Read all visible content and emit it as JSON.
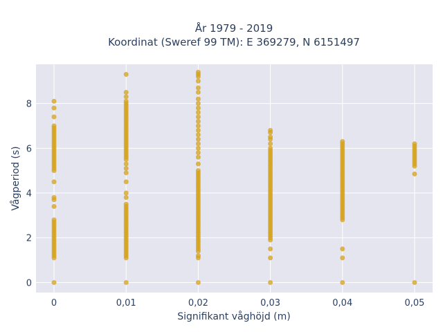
{
  "chart_data": {
    "type": "scatter",
    "title_line1": "År 1979 - 2019",
    "title_line2": "Koordinat (Sweref 99 TM): E 369279, N 6151497",
    "xlabel": "Signifikant våghöjd (m)",
    "ylabel": "Vågperiod (s)",
    "xlim": [
      -0.0025,
      0.0525
    ],
    "ylim": [
      -0.45,
      9.75
    ],
    "x_ticks": [
      {
        "value": 0,
        "label": "0"
      },
      {
        "value": 0.01,
        "label": "0,01"
      },
      {
        "value": 0.02,
        "label": "0,02"
      },
      {
        "value": 0.03,
        "label": "0,03"
      },
      {
        "value": 0.04,
        "label": "0,04"
      },
      {
        "value": 0.05,
        "label": "0,05"
      }
    ],
    "y_ticks": [
      {
        "value": 0,
        "label": "0"
      },
      {
        "value": 2,
        "label": "2"
      },
      {
        "value": 4,
        "label": "4"
      },
      {
        "value": 6,
        "label": "6"
      },
      {
        "value": 8,
        "label": "8"
      }
    ],
    "grid": true,
    "colors": {
      "marker": "#D4A017",
      "plot_bg": "#E5E5F0",
      "grid": "#ffffff"
    },
    "series": [
      {
        "points": [
          {
            "x": 0,
            "y": 0
          },
          {
            "x": 0,
            "y": 1.1
          },
          {
            "x": 0,
            "y": 1.2
          },
          {
            "x": 0,
            "y": 1.3
          },
          {
            "x": 0,
            "y": 1.4
          },
          {
            "x": 0,
            "y": 1.5
          },
          {
            "x": 0,
            "y": 1.6
          },
          {
            "x": 0,
            "y": 1.7
          },
          {
            "x": 0,
            "y": 1.8
          },
          {
            "x": 0,
            "y": 1.9
          },
          {
            "x": 0,
            "y": 2.0
          },
          {
            "x": 0,
            "y": 2.1
          },
          {
            "x": 0,
            "y": 2.2
          },
          {
            "x": 0,
            "y": 2.3
          },
          {
            "x": 0,
            "y": 2.4
          },
          {
            "x": 0,
            "y": 2.5
          },
          {
            "x": 0,
            "y": 2.6
          },
          {
            "x": 0,
            "y": 2.7
          },
          {
            "x": 0,
            "y": 2.8
          },
          {
            "x": 0,
            "y": 3.4
          },
          {
            "x": 0,
            "y": 3.7
          },
          {
            "x": 0,
            "y": 3.8
          },
          {
            "x": 0,
            "y": 4.5
          },
          {
            "x": 0,
            "y": 5.0
          },
          {
            "x": 0,
            "y": 5.1
          },
          {
            "x": 0,
            "y": 5.2
          },
          {
            "x": 0,
            "y": 5.3
          },
          {
            "x": 0,
            "y": 5.4
          },
          {
            "x": 0,
            "y": 5.5
          },
          {
            "x": 0,
            "y": 5.6
          },
          {
            "x": 0,
            "y": 5.7
          },
          {
            "x": 0,
            "y": 5.8
          },
          {
            "x": 0,
            "y": 5.9
          },
          {
            "x": 0,
            "y": 6.0
          },
          {
            "x": 0,
            "y": 6.1
          },
          {
            "x": 0,
            "y": 6.2
          },
          {
            "x": 0,
            "y": 6.3
          },
          {
            "x": 0,
            "y": 6.4
          },
          {
            "x": 0,
            "y": 6.5
          },
          {
            "x": 0,
            "y": 6.6
          },
          {
            "x": 0,
            "y": 6.7
          },
          {
            "x": 0,
            "y": 6.8
          },
          {
            "x": 0,
            "y": 6.9
          },
          {
            "x": 0,
            "y": 7.0
          },
          {
            "x": 0,
            "y": 7.4
          },
          {
            "x": 0,
            "y": 7.8
          },
          {
            "x": 0,
            "y": 8.1
          },
          {
            "x": 0.01,
            "y": 0
          },
          {
            "x": 0.01,
            "y": 1.1
          },
          {
            "x": 0.01,
            "y": 1.2
          },
          {
            "x": 0.01,
            "y": 1.3
          },
          {
            "x": 0.01,
            "y": 1.4
          },
          {
            "x": 0.01,
            "y": 1.5
          },
          {
            "x": 0.01,
            "y": 1.6
          },
          {
            "x": 0.01,
            "y": 1.7
          },
          {
            "x": 0.01,
            "y": 1.8
          },
          {
            "x": 0.01,
            "y": 1.9
          },
          {
            "x": 0.01,
            "y": 2.0
          },
          {
            "x": 0.01,
            "y": 2.1
          },
          {
            "x": 0.01,
            "y": 2.2
          },
          {
            "x": 0.01,
            "y": 2.3
          },
          {
            "x": 0.01,
            "y": 2.4
          },
          {
            "x": 0.01,
            "y": 2.5
          },
          {
            "x": 0.01,
            "y": 2.6
          },
          {
            "x": 0.01,
            "y": 2.7
          },
          {
            "x": 0.01,
            "y": 2.8
          },
          {
            "x": 0.01,
            "y": 2.9
          },
          {
            "x": 0.01,
            "y": 3.0
          },
          {
            "x": 0.01,
            "y": 3.1
          },
          {
            "x": 0.01,
            "y": 3.2
          },
          {
            "x": 0.01,
            "y": 3.3
          },
          {
            "x": 0.01,
            "y": 3.4
          },
          {
            "x": 0.01,
            "y": 3.5
          },
          {
            "x": 0.01,
            "y": 3.8
          },
          {
            "x": 0.01,
            "y": 4.0
          },
          {
            "x": 0.01,
            "y": 4.5
          },
          {
            "x": 0.01,
            "y": 4.9
          },
          {
            "x": 0.01,
            "y": 5.1
          },
          {
            "x": 0.01,
            "y": 5.3
          },
          {
            "x": 0.01,
            "y": 5.5
          },
          {
            "x": 0.01,
            "y": 5.6
          },
          {
            "x": 0.01,
            "y": 5.7
          },
          {
            "x": 0.01,
            "y": 5.8
          },
          {
            "x": 0.01,
            "y": 5.9
          },
          {
            "x": 0.01,
            "y": 6.0
          },
          {
            "x": 0.01,
            "y": 6.1
          },
          {
            "x": 0.01,
            "y": 6.2
          },
          {
            "x": 0.01,
            "y": 6.3
          },
          {
            "x": 0.01,
            "y": 6.4
          },
          {
            "x": 0.01,
            "y": 6.5
          },
          {
            "x": 0.01,
            "y": 6.6
          },
          {
            "x": 0.01,
            "y": 6.7
          },
          {
            "x": 0.01,
            "y": 6.8
          },
          {
            "x": 0.01,
            "y": 6.9
          },
          {
            "x": 0.01,
            "y": 7.0
          },
          {
            "x": 0.01,
            "y": 7.1
          },
          {
            "x": 0.01,
            "y": 7.2
          },
          {
            "x": 0.01,
            "y": 7.3
          },
          {
            "x": 0.01,
            "y": 7.4
          },
          {
            "x": 0.01,
            "y": 7.5
          },
          {
            "x": 0.01,
            "y": 7.6
          },
          {
            "x": 0.01,
            "y": 7.7
          },
          {
            "x": 0.01,
            "y": 7.8
          },
          {
            "x": 0.01,
            "y": 7.9
          },
          {
            "x": 0.01,
            "y": 8.0
          },
          {
            "x": 0.01,
            "y": 8.1
          },
          {
            "x": 0.01,
            "y": 8.3
          },
          {
            "x": 0.01,
            "y": 8.5
          },
          {
            "x": 0.01,
            "y": 9.3
          },
          {
            "x": 0.02,
            "y": 0
          },
          {
            "x": 0.02,
            "y": 1.1
          },
          {
            "x": 0.02,
            "y": 1.2
          },
          {
            "x": 0.02,
            "y": 1.4
          },
          {
            "x": 0.02,
            "y": 1.5
          },
          {
            "x": 0.02,
            "y": 1.6
          },
          {
            "x": 0.02,
            "y": 1.7
          },
          {
            "x": 0.02,
            "y": 1.8
          },
          {
            "x": 0.02,
            "y": 1.9
          },
          {
            "x": 0.02,
            "y": 2.0
          },
          {
            "x": 0.02,
            "y": 2.1
          },
          {
            "x": 0.02,
            "y": 2.2
          },
          {
            "x": 0.02,
            "y": 2.3
          },
          {
            "x": 0.02,
            "y": 2.4
          },
          {
            "x": 0.02,
            "y": 2.5
          },
          {
            "x": 0.02,
            "y": 2.6
          },
          {
            "x": 0.02,
            "y": 2.7
          },
          {
            "x": 0.02,
            "y": 2.8
          },
          {
            "x": 0.02,
            "y": 2.9
          },
          {
            "x": 0.02,
            "y": 3.0
          },
          {
            "x": 0.02,
            "y": 3.1
          },
          {
            "x": 0.02,
            "y": 3.2
          },
          {
            "x": 0.02,
            "y": 3.3
          },
          {
            "x": 0.02,
            "y": 3.4
          },
          {
            "x": 0.02,
            "y": 3.5
          },
          {
            "x": 0.02,
            "y": 3.6
          },
          {
            "x": 0.02,
            "y": 3.7
          },
          {
            "x": 0.02,
            "y": 3.8
          },
          {
            "x": 0.02,
            "y": 3.9
          },
          {
            "x": 0.02,
            "y": 4.0
          },
          {
            "x": 0.02,
            "y": 4.1
          },
          {
            "x": 0.02,
            "y": 4.2
          },
          {
            "x": 0.02,
            "y": 4.3
          },
          {
            "x": 0.02,
            "y": 4.4
          },
          {
            "x": 0.02,
            "y": 4.5
          },
          {
            "x": 0.02,
            "y": 4.6
          },
          {
            "x": 0.02,
            "y": 4.7
          },
          {
            "x": 0.02,
            "y": 4.8
          },
          {
            "x": 0.02,
            "y": 4.9
          },
          {
            "x": 0.02,
            "y": 5.0
          },
          {
            "x": 0.02,
            "y": 5.3
          },
          {
            "x": 0.02,
            "y": 5.6
          },
          {
            "x": 0.02,
            "y": 5.8
          },
          {
            "x": 0.02,
            "y": 6.0
          },
          {
            "x": 0.02,
            "y": 6.2
          },
          {
            "x": 0.02,
            "y": 6.4
          },
          {
            "x": 0.02,
            "y": 6.6
          },
          {
            "x": 0.02,
            "y": 6.8
          },
          {
            "x": 0.02,
            "y": 7.0
          },
          {
            "x": 0.02,
            "y": 7.2
          },
          {
            "x": 0.02,
            "y": 7.4
          },
          {
            "x": 0.02,
            "y": 7.6
          },
          {
            "x": 0.02,
            "y": 7.8
          },
          {
            "x": 0.02,
            "y": 8.0
          },
          {
            "x": 0.02,
            "y": 8.2
          },
          {
            "x": 0.02,
            "y": 8.5
          },
          {
            "x": 0.02,
            "y": 8.7
          },
          {
            "x": 0.02,
            "y": 9.0
          },
          {
            "x": 0.02,
            "y": 9.2
          },
          {
            "x": 0.02,
            "y": 9.3
          },
          {
            "x": 0.02,
            "y": 9.4
          },
          {
            "x": 0.03,
            "y": 0
          },
          {
            "x": 0.03,
            "y": 1.1
          },
          {
            "x": 0.03,
            "y": 1.5
          },
          {
            "x": 0.03,
            "y": 1.9
          },
          {
            "x": 0.03,
            "y": 2.0
          },
          {
            "x": 0.03,
            "y": 2.1
          },
          {
            "x": 0.03,
            "y": 2.2
          },
          {
            "x": 0.03,
            "y": 2.3
          },
          {
            "x": 0.03,
            "y": 2.4
          },
          {
            "x": 0.03,
            "y": 2.5
          },
          {
            "x": 0.03,
            "y": 2.6
          },
          {
            "x": 0.03,
            "y": 2.7
          },
          {
            "x": 0.03,
            "y": 2.8
          },
          {
            "x": 0.03,
            "y": 2.9
          },
          {
            "x": 0.03,
            "y": 3.0
          },
          {
            "x": 0.03,
            "y": 3.1
          },
          {
            "x": 0.03,
            "y": 3.2
          },
          {
            "x": 0.03,
            "y": 3.3
          },
          {
            "x": 0.03,
            "y": 3.4
          },
          {
            "x": 0.03,
            "y": 3.5
          },
          {
            "x": 0.03,
            "y": 3.6
          },
          {
            "x": 0.03,
            "y": 3.7
          },
          {
            "x": 0.03,
            "y": 3.8
          },
          {
            "x": 0.03,
            "y": 3.9
          },
          {
            "x": 0.03,
            "y": 4.0
          },
          {
            "x": 0.03,
            "y": 4.1
          },
          {
            "x": 0.03,
            "y": 4.2
          },
          {
            "x": 0.03,
            "y": 4.3
          },
          {
            "x": 0.03,
            "y": 4.4
          },
          {
            "x": 0.03,
            "y": 4.5
          },
          {
            "x": 0.03,
            "y": 4.6
          },
          {
            "x": 0.03,
            "y": 4.7
          },
          {
            "x": 0.03,
            "y": 4.8
          },
          {
            "x": 0.03,
            "y": 4.9
          },
          {
            "x": 0.03,
            "y": 5.0
          },
          {
            "x": 0.03,
            "y": 5.1
          },
          {
            "x": 0.03,
            "y": 5.2
          },
          {
            "x": 0.03,
            "y": 5.3
          },
          {
            "x": 0.03,
            "y": 5.4
          },
          {
            "x": 0.03,
            "y": 5.5
          },
          {
            "x": 0.03,
            "y": 5.6
          },
          {
            "x": 0.03,
            "y": 5.7
          },
          {
            "x": 0.03,
            "y": 5.8
          },
          {
            "x": 0.03,
            "y": 5.9
          },
          {
            "x": 0.03,
            "y": 6.0
          },
          {
            "x": 0.03,
            "y": 6.2
          },
          {
            "x": 0.03,
            "y": 6.4
          },
          {
            "x": 0.03,
            "y": 6.5
          },
          {
            "x": 0.03,
            "y": 6.7
          },
          {
            "x": 0.03,
            "y": 6.8
          },
          {
            "x": 0.04,
            "y": 0
          },
          {
            "x": 0.04,
            "y": 1.1
          },
          {
            "x": 0.04,
            "y": 1.5
          },
          {
            "x": 0.04,
            "y": 2.8
          },
          {
            "x": 0.04,
            "y": 2.9
          },
          {
            "x": 0.04,
            "y": 3.0
          },
          {
            "x": 0.04,
            "y": 3.1
          },
          {
            "x": 0.04,
            "y": 3.2
          },
          {
            "x": 0.04,
            "y": 3.3
          },
          {
            "x": 0.04,
            "y": 3.4
          },
          {
            "x": 0.04,
            "y": 3.5
          },
          {
            "x": 0.04,
            "y": 3.6
          },
          {
            "x": 0.04,
            "y": 3.7
          },
          {
            "x": 0.04,
            "y": 3.8
          },
          {
            "x": 0.04,
            "y": 3.9
          },
          {
            "x": 0.04,
            "y": 4.0
          },
          {
            "x": 0.04,
            "y": 4.1
          },
          {
            "x": 0.04,
            "y": 4.2
          },
          {
            "x": 0.04,
            "y": 4.3
          },
          {
            "x": 0.04,
            "y": 4.4
          },
          {
            "x": 0.04,
            "y": 4.5
          },
          {
            "x": 0.04,
            "y": 4.6
          },
          {
            "x": 0.04,
            "y": 4.7
          },
          {
            "x": 0.04,
            "y": 4.8
          },
          {
            "x": 0.04,
            "y": 4.9
          },
          {
            "x": 0.04,
            "y": 5.0
          },
          {
            "x": 0.04,
            "y": 5.1
          },
          {
            "x": 0.04,
            "y": 5.2
          },
          {
            "x": 0.04,
            "y": 5.3
          },
          {
            "x": 0.04,
            "y": 5.4
          },
          {
            "x": 0.04,
            "y": 5.5
          },
          {
            "x": 0.04,
            "y": 5.6
          },
          {
            "x": 0.04,
            "y": 5.7
          },
          {
            "x": 0.04,
            "y": 5.8
          },
          {
            "x": 0.04,
            "y": 5.9
          },
          {
            "x": 0.04,
            "y": 6.0
          },
          {
            "x": 0.04,
            "y": 6.1
          },
          {
            "x": 0.04,
            "y": 6.2
          },
          {
            "x": 0.04,
            "y": 6.3
          },
          {
            "x": 0.05,
            "y": 0
          },
          {
            "x": 0.05,
            "y": 4.85
          },
          {
            "x": 0.05,
            "y": 5.2
          },
          {
            "x": 0.05,
            "y": 5.3
          },
          {
            "x": 0.05,
            "y": 5.4
          },
          {
            "x": 0.05,
            "y": 5.5
          },
          {
            "x": 0.05,
            "y": 5.6
          },
          {
            "x": 0.05,
            "y": 5.7
          },
          {
            "x": 0.05,
            "y": 5.8
          },
          {
            "x": 0.05,
            "y": 5.9
          },
          {
            "x": 0.05,
            "y": 6.0
          },
          {
            "x": 0.05,
            "y": 6.1
          },
          {
            "x": 0.05,
            "y": 6.2
          }
        ]
      }
    ]
  }
}
